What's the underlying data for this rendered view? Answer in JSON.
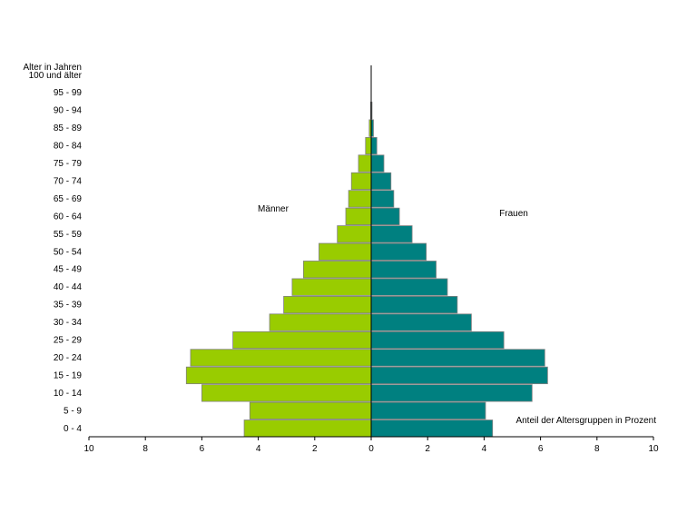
{
  "chart_data": {
    "type": "bar",
    "orientation": "horizontal",
    "subtype": "population-pyramid",
    "y_title_line1": "Alter in Jahren",
    "y_title_line2": "100 und älter",
    "xlabel": "Anteil der Altersgruppen in Prozent",
    "categories": [
      "0 - 4",
      "5 - 9",
      "10 - 14",
      "15 - 19",
      "20 - 24",
      "25 - 29",
      "30 - 34",
      "35 - 39",
      "40 - 44",
      "45 - 49",
      "50 - 54",
      "55 - 59",
      "60 - 64",
      "65 - 69",
      "70 - 74",
      "75 - 79",
      "80 - 84",
      "85 - 89",
      "90 - 94",
      "95 - 99",
      "100 und älter"
    ],
    "series": [
      {
        "name": "Männer",
        "color": "#99cc00",
        "values": [
          4.5,
          4.3,
          6.0,
          6.55,
          6.4,
          4.9,
          3.6,
          3.1,
          2.8,
          2.4,
          1.85,
          1.2,
          0.9,
          0.8,
          0.7,
          0.45,
          0.2,
          0.07,
          0.02,
          0.0,
          0.0
        ]
      },
      {
        "name": "Frauen",
        "color": "#008080",
        "values": [
          4.3,
          4.05,
          5.7,
          6.25,
          6.15,
          4.7,
          3.55,
          3.05,
          2.7,
          2.3,
          1.95,
          1.45,
          1.0,
          0.8,
          0.7,
          0.45,
          0.2,
          0.08,
          0.03,
          0.0,
          0.0
        ]
      }
    ],
    "xlim": [
      -10,
      10
    ],
    "x_ticks": [
      -10,
      -8,
      -6,
      -4,
      -2,
      0,
      2,
      4,
      6,
      8,
      10
    ],
    "x_tick_labels": [
      "10",
      "8",
      "6",
      "4",
      "2",
      "0",
      "2",
      "4",
      "6",
      "8",
      "10"
    ],
    "grid": false,
    "legend": "none"
  }
}
